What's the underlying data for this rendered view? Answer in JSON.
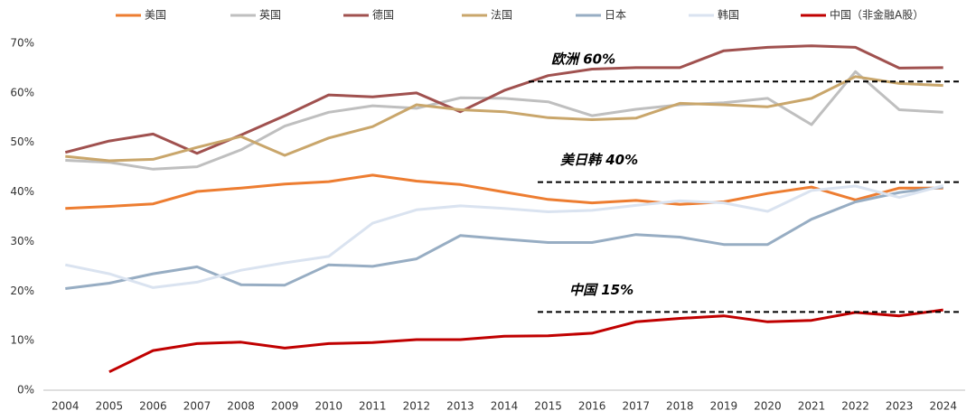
{
  "chart_data": {
    "type": "line",
    "categories": [
      "2004",
      "2005",
      "2006",
      "2007",
      "2008",
      "2009",
      "2010",
      "2011",
      "2012",
      "2013",
      "2014",
      "2015",
      "2016",
      "2017",
      "2018",
      "2019",
      "2020",
      "2021",
      "2022",
      "2023",
      "2024"
    ],
    "series": [
      {
        "name": "美国",
        "color": "#ed7d31",
        "values": [
          36.7,
          37.1,
          37.6,
          40.1,
          40.8,
          41.6,
          42.1,
          43.4,
          42.2,
          41.5,
          40.0,
          38.5,
          37.8,
          38.3,
          37.5,
          38.0,
          39.7,
          41.0,
          38.4,
          40.8,
          40.8
        ]
      },
      {
        "name": "英国",
        "color": "#bfbfbf",
        "values": [
          46.4,
          46.0,
          44.6,
          45.1,
          48.5,
          53.3,
          56.1,
          57.4,
          56.9,
          59.0,
          58.9,
          58.2,
          55.4,
          56.7,
          57.6,
          58.0,
          58.9,
          53.6,
          64.3,
          56.6,
          56.1
        ]
      },
      {
        "name": "德国",
        "color": "#a0514f",
        "values": [
          48.0,
          50.3,
          51.7,
          47.8,
          51.5,
          55.4,
          59.6,
          59.2,
          60.0,
          56.2,
          60.5,
          63.5,
          64.8,
          65.1,
          65.1,
          68.5,
          69.2,
          69.5,
          69.2,
          65.0,
          65.1
        ]
      },
      {
        "name": "法国",
        "color": "#c9a66b",
        "values": [
          47.2,
          46.3,
          46.6,
          49.0,
          51.2,
          47.4,
          50.9,
          53.2,
          57.6,
          56.6,
          56.2,
          55.0,
          54.6,
          54.9,
          57.9,
          57.6,
          57.2,
          58.9,
          63.3,
          61.9,
          61.5
        ]
      },
      {
        "name": "日本",
        "color": "#97adc3",
        "values": [
          20.5,
          21.6,
          23.5,
          24.9,
          21.3,
          21.2,
          25.3,
          25.0,
          26.5,
          31.2,
          30.5,
          29.8,
          29.8,
          31.4,
          30.9,
          29.4,
          29.4,
          34.5,
          38.0,
          39.9,
          41.0
        ]
      },
      {
        "name": "韩国",
        "color": "#dae3f0",
        "values": [
          25.3,
          23.5,
          20.7,
          21.8,
          24.2,
          25.7,
          27.0,
          33.7,
          36.4,
          37.2,
          36.7,
          36.0,
          36.3,
          37.3,
          38.2,
          37.8,
          36.1,
          40.3,
          41.2,
          38.9,
          41.3
        ]
      },
      {
        "name": "中国（非金融A股）",
        "color": "#c00000",
        "values": [
          null,
          3.7,
          8.0,
          9.4,
          9.7,
          8.5,
          9.4,
          9.6,
          10.2,
          10.2,
          10.9,
          11.0,
          11.5,
          13.8,
          14.5,
          15.0,
          13.8,
          14.1,
          15.7,
          15.0,
          16.2
        ]
      }
    ],
    "ylim": [
      0,
      70
    ],
    "yticks": [
      {
        "value": 0,
        "label": "0%"
      },
      {
        "value": 10,
        "label": "10%"
      },
      {
        "value": 20,
        "label": "20%"
      },
      {
        "value": 30,
        "label": "30%"
      },
      {
        "value": 40,
        "label": "40%"
      },
      {
        "value": 50,
        "label": "50%"
      },
      {
        "value": 60,
        "label": "60%"
      },
      {
        "value": 70,
        "label": "70%"
      }
    ],
    "annotations": [
      {
        "text": "欧洲 60%",
        "level": 62.3
      },
      {
        "text": "美日韩 40%",
        "level": 42.0
      },
      {
        "text": "中国 15%",
        "level": 15.8
      }
    ]
  }
}
